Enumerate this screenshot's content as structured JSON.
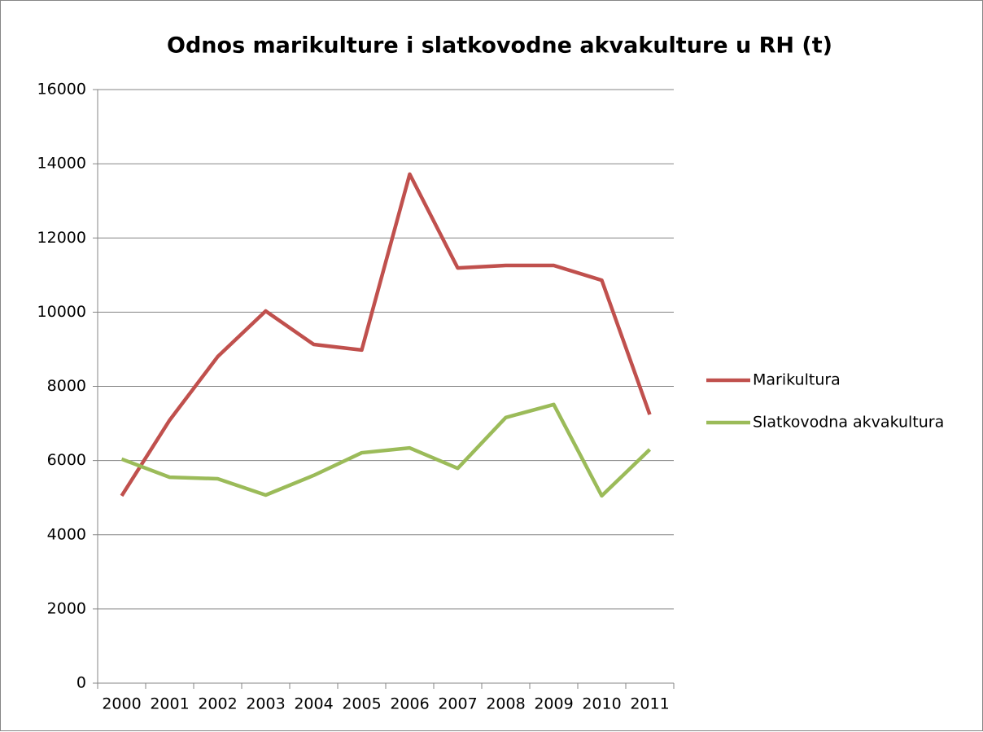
{
  "chart_data": {
    "type": "line",
    "title": "Odnos marikulture i slatkovodne akvakulture u RH (t)",
    "categories": [
      "2000",
      "2001",
      "2002",
      "2003",
      "2004",
      "2005",
      "2006",
      "2007",
      "2008",
      "2009",
      "2010",
      "2011"
    ],
    "series": [
      {
        "name": "Marikultura",
        "color": "#c0504d",
        "values": [
          5050,
          7090,
          8800,
          10030,
          9130,
          8980,
          13720,
          11190,
          11260,
          11260,
          10860,
          7240
        ]
      },
      {
        "name": "Slatkovodna akvakultura",
        "color": "#9bbb59",
        "values": [
          6040,
          5550,
          5510,
          5070,
          5600,
          6210,
          6340,
          5790,
          7160,
          7510,
          5050,
          6300
        ]
      }
    ],
    "ylim": [
      0,
      16000
    ],
    "yticks": [
      0,
      2000,
      4000,
      6000,
      8000,
      10000,
      12000,
      14000,
      16000
    ],
    "grid": true,
    "legend": "right"
  }
}
